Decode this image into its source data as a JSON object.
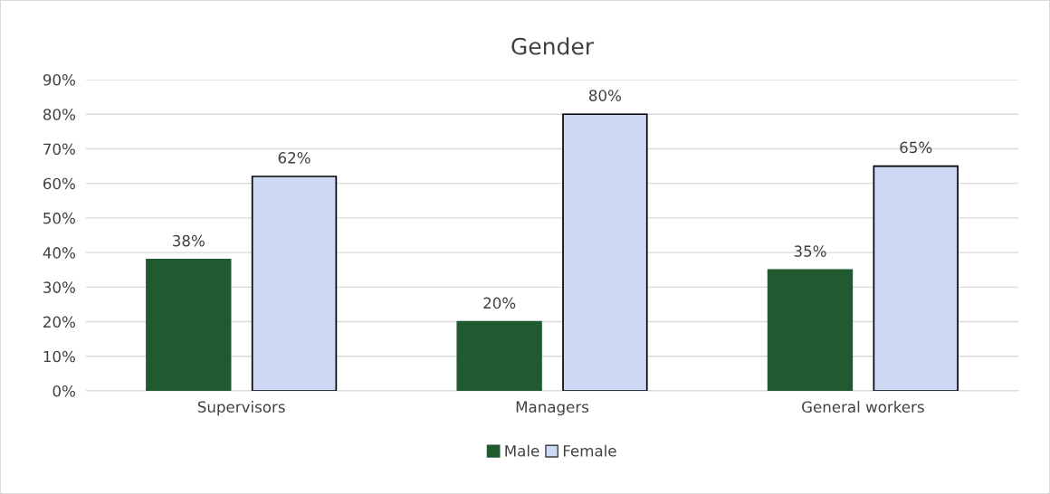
{
  "chart_data": {
    "type": "bar",
    "title": "Gender",
    "categories": [
      "Supervisors",
      "Managers",
      "General workers"
    ],
    "series": [
      {
        "name": "Male",
        "color": "#1f5a30",
        "values": [
          38,
          20,
          35
        ],
        "value_labels": [
          "38%",
          "20%",
          "35%"
        ]
      },
      {
        "name": "Female",
        "color": "#cdd8f4",
        "values": [
          62,
          80,
          65
        ],
        "value_labels": [
          "62%",
          "80%",
          "65%"
        ]
      }
    ],
    "ylim": [
      0,
      90
    ],
    "yticks": [
      {
        "value": 0,
        "label": "0%"
      },
      {
        "value": 10,
        "label": "10%"
      },
      {
        "value": 20,
        "label": "20%"
      },
      {
        "value": 30,
        "label": "30%"
      },
      {
        "value": 40,
        "label": "40%"
      },
      {
        "value": 50,
        "label": "50%"
      },
      {
        "value": 60,
        "label": "60%"
      },
      {
        "value": 70,
        "label": "70%"
      },
      {
        "value": 80,
        "label": "80%"
      },
      {
        "value": 90,
        "label": "90%"
      }
    ],
    "grid": "y",
    "legend": "bottom"
  }
}
